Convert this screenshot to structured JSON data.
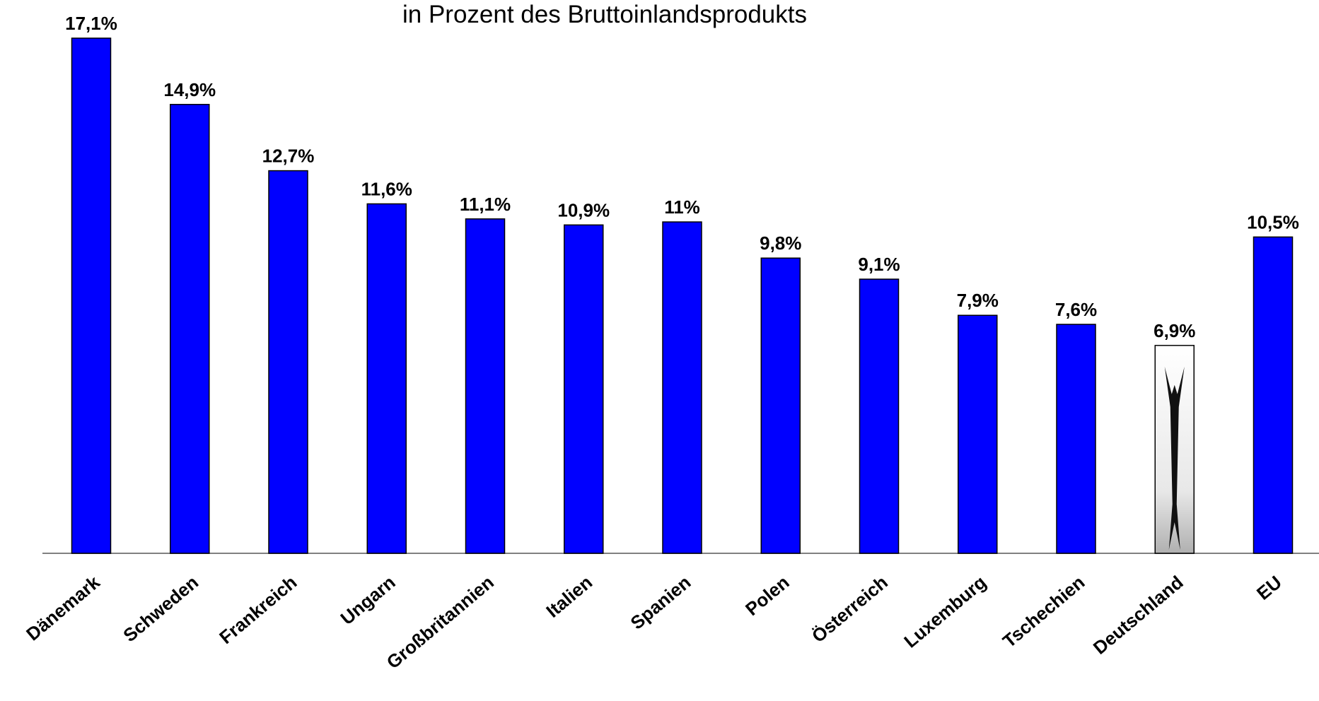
{
  "chart_data": {
    "type": "bar",
    "subtitle": "in Prozent des Bruttoinlandsprodukts",
    "categories": [
      "Dänemark",
      "Schweden",
      "Frankreich",
      "Ungarn",
      "Großbritannien",
      "Italien",
      "Spanien",
      "Polen",
      "Österreich",
      "Luxemburg",
      "Tschechien",
      "Deutschland",
      "EU"
    ],
    "values": [
      17.1,
      14.9,
      12.7,
      11.6,
      11.1,
      10.9,
      11,
      9.8,
      9.1,
      7.9,
      7.6,
      6.9,
      10.5
    ],
    "value_labels": [
      "17,1%",
      "14,9%",
      "12,7%",
      "11,6%",
      "11,1%",
      "10,9%",
      "11%",
      "9,8%",
      "9,1%",
      "7,9%",
      "7,6%",
      "6,9%",
      "10,5%"
    ],
    "colors": [
      "#0000ff",
      "#0000ff",
      "#0000ff",
      "#0000ff",
      "#0000ff",
      "#0000ff",
      "#0000ff",
      "#0000ff",
      "#0000ff",
      "#0000ff",
      "#0000ff",
      "#ffffff",
      "#0000ff"
    ]
  }
}
